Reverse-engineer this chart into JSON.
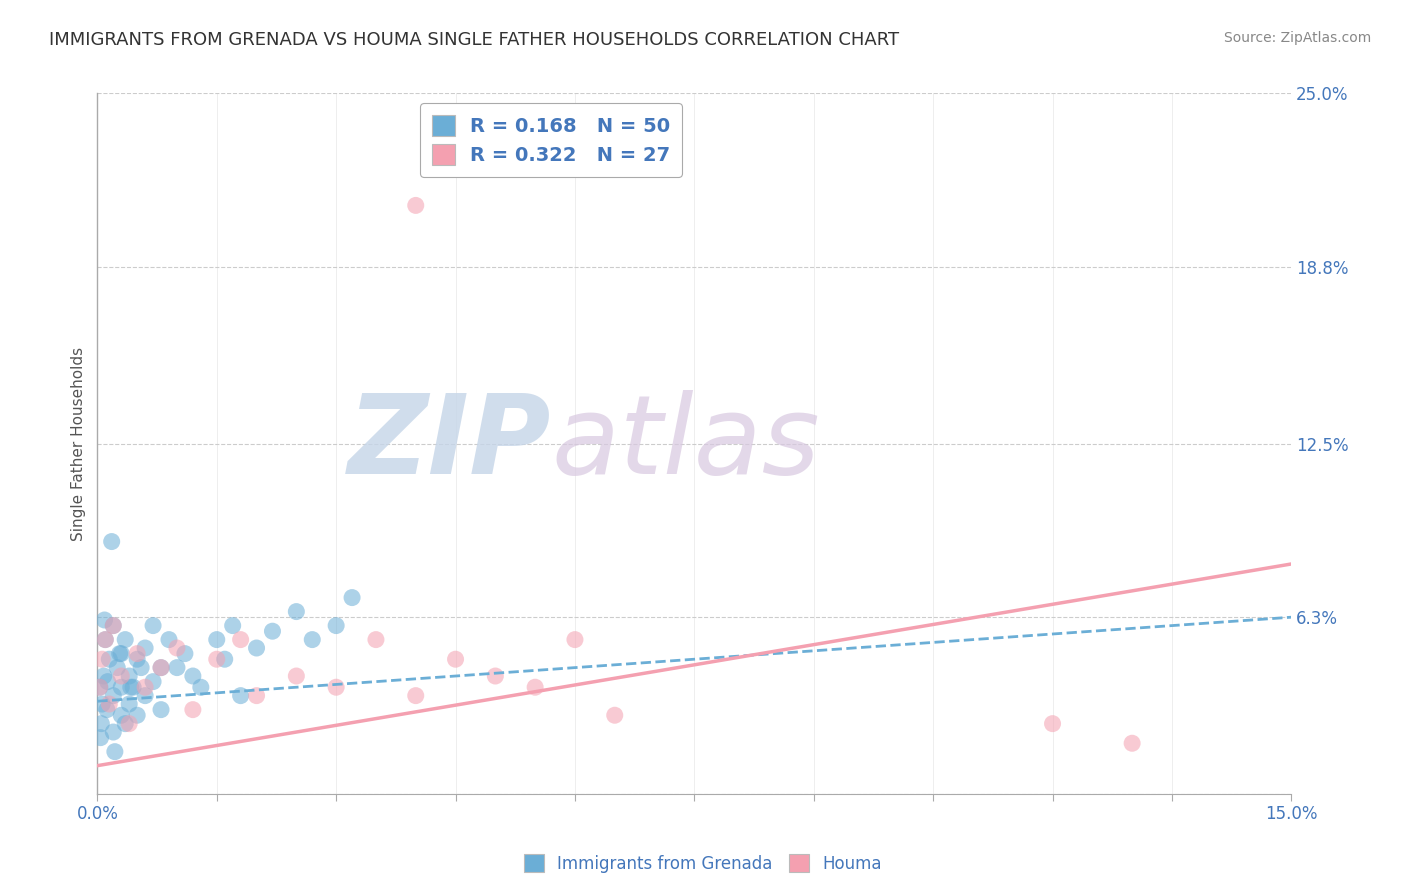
{
  "title": "IMMIGRANTS FROM GRENADA VS HOUMA SINGLE FATHER HOUSEHOLDS CORRELATION CHART",
  "source": "Source: ZipAtlas.com",
  "ylabel": "Single Father Households",
  "xlim": [
    0.0,
    0.15
  ],
  "ylim": [
    0.0,
    0.25
  ],
  "xticks": [
    0.0,
    0.015,
    0.03,
    0.045,
    0.06,
    0.075,
    0.09,
    0.105,
    0.12,
    0.135,
    0.15
  ],
  "xticklabels": [
    "0.0%",
    "",
    "",
    "",
    "",
    "",
    "",
    "",
    "",
    "",
    "15.0%"
  ],
  "yticks": [
    0.0,
    0.063,
    0.125,
    0.188,
    0.25
  ],
  "yticklabels": [
    "",
    "6.3%",
    "12.5%",
    "18.8%",
    "25.0%"
  ],
  "blue_R": 0.168,
  "blue_N": 50,
  "pink_R": 0.322,
  "pink_N": 27,
  "blue_color": "#6baed6",
  "pink_color": "#f4a0b0",
  "blue_label": "Immigrants from Grenada",
  "pink_label": "Houma",
  "background_color": "#ffffff",
  "grid_color": "#cccccc",
  "watermark_zip": "ZIP",
  "watermark_atlas": "atlas",
  "title_fontsize": 13,
  "label_color": "#4477bb",
  "blue_trend_start_y": 0.033,
  "blue_trend_end_y": 0.063,
  "pink_trend_start_y": 0.01,
  "pink_trend_end_y": 0.082,
  "blue_scatter_x": [
    0.0003,
    0.0005,
    0.0008,
    0.001,
    0.0012,
    0.0015,
    0.002,
    0.002,
    0.002,
    0.0025,
    0.003,
    0.003,
    0.003,
    0.0035,
    0.004,
    0.004,
    0.0045,
    0.005,
    0.005,
    0.006,
    0.006,
    0.007,
    0.007,
    0.008,
    0.008,
    0.009,
    0.01,
    0.011,
    0.012,
    0.013,
    0.015,
    0.016,
    0.017,
    0.018,
    0.02,
    0.022,
    0.025,
    0.027,
    0.03,
    0.032,
    0.0004,
    0.0006,
    0.0009,
    0.0013,
    0.0018,
    0.0022,
    0.0028,
    0.0035,
    0.0042,
    0.0055
  ],
  "blue_scatter_y": [
    0.038,
    0.025,
    0.042,
    0.055,
    0.03,
    0.048,
    0.06,
    0.035,
    0.022,
    0.045,
    0.038,
    0.05,
    0.028,
    0.055,
    0.042,
    0.032,
    0.038,
    0.048,
    0.028,
    0.052,
    0.035,
    0.06,
    0.04,
    0.045,
    0.03,
    0.055,
    0.045,
    0.05,
    0.042,
    0.038,
    0.055,
    0.048,
    0.06,
    0.035,
    0.052,
    0.058,
    0.065,
    0.055,
    0.06,
    0.07,
    0.02,
    0.032,
    0.062,
    0.04,
    0.09,
    0.015,
    0.05,
    0.025,
    0.038,
    0.045
  ],
  "pink_scatter_x": [
    0.0003,
    0.0006,
    0.001,
    0.0015,
    0.002,
    0.003,
    0.004,
    0.005,
    0.006,
    0.008,
    0.01,
    0.012,
    0.015,
    0.018,
    0.02,
    0.025,
    0.03,
    0.035,
    0.04,
    0.045,
    0.05,
    0.055,
    0.06,
    0.12,
    0.13,
    0.04,
    0.065
  ],
  "pink_scatter_y": [
    0.038,
    0.048,
    0.055,
    0.032,
    0.06,
    0.042,
    0.025,
    0.05,
    0.038,
    0.045,
    0.052,
    0.03,
    0.048,
    0.055,
    0.035,
    0.042,
    0.038,
    0.055,
    0.035,
    0.048,
    0.042,
    0.038,
    0.055,
    0.025,
    0.018,
    0.21,
    0.028
  ]
}
